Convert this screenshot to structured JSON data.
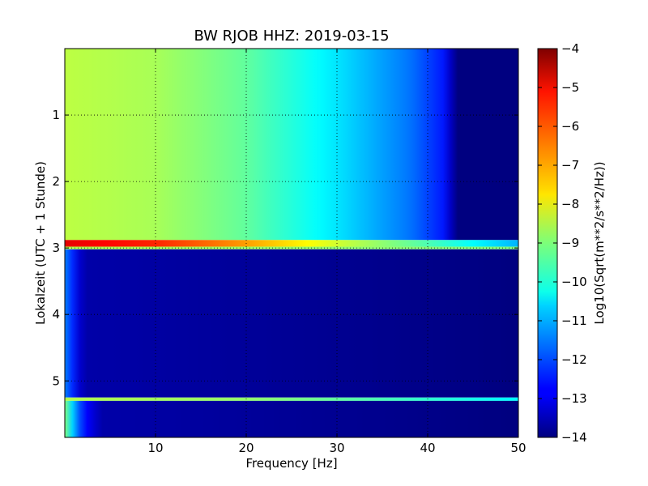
{
  "chart_data": {
    "type": "heatmap",
    "title": "BW RJOB HHZ: 2019-03-15",
    "xlabel": "Frequency [Hz]",
    "ylabel": "Lokalzeit (UTC + 1 Stunde)",
    "xlim": [
      0,
      50
    ],
    "ylim": [
      5.85,
      0
    ],
    "x_ticks": [
      10,
      20,
      30,
      40,
      50
    ],
    "x_tick_labels": [
      "10",
      "20",
      "30",
      "40",
      "50"
    ],
    "y_ticks": [
      1,
      2,
      3,
      4,
      5
    ],
    "y_tick_labels": [
      "1",
      "2",
      "3",
      "4",
      "5"
    ],
    "grid": true,
    "colormap": "jet",
    "colorbar": {
      "label": "Log10(Sqrt(m**2/s**2/Hz))",
      "range": [
        -14,
        -4
      ],
      "ticks": [
        -4,
        -5,
        -6,
        -7,
        -8,
        -9,
        -10,
        -11,
        -12,
        -13,
        -14
      ],
      "tick_labels": [
        "−4",
        "−5",
        "−6",
        "−7",
        "−8",
        "−9",
        "−10",
        "−11",
        "−12",
        "−13",
        "−14"
      ]
    },
    "regions": [
      {
        "hours": [
          0.0,
          2.88
        ],
        "level_vs_frequency": [
          [
            0,
            -8.4
          ],
          [
            10,
            -8.6
          ],
          [
            20,
            -9.3
          ],
          [
            30,
            -10.5
          ],
          [
            38,
            -11.6
          ],
          [
            42,
            -12.6
          ],
          [
            43,
            -14
          ],
          [
            50,
            -14
          ]
        ]
      },
      {
        "hours": [
          2.88,
          2.98
        ],
        "level_vs_frequency": [
          [
            0,
            -5.0
          ],
          [
            10,
            -5.6
          ],
          [
            20,
            -6.8
          ],
          [
            30,
            -8.2
          ],
          [
            40,
            -9.5
          ],
          [
            50,
            -11.0
          ]
        ]
      },
      {
        "hours": [
          2.98,
          3.02
        ],
        "level_vs_frequency": [
          [
            0,
            -8.5
          ],
          [
            50,
            -9.0
          ]
        ]
      },
      {
        "hours": [
          3.02,
          5.25
        ],
        "level_vs_frequency": [
          [
            0,
            -11.5
          ],
          [
            1,
            -12.5
          ],
          [
            2,
            -13.6
          ],
          [
            50,
            -14
          ]
        ]
      },
      {
        "hours": [
          5.25,
          5.3
        ],
        "level_vs_frequency": [
          [
            0,
            -8.5
          ],
          [
            20,
            -8.8
          ],
          [
            40,
            -9.8
          ],
          [
            50,
            -10.3
          ]
        ]
      },
      {
        "hours": [
          5.3,
          5.85
        ],
        "level_vs_frequency": [
          [
            0,
            -9.0
          ],
          [
            1,
            -11.0
          ],
          [
            2,
            -12.5
          ],
          [
            4,
            -13.6
          ],
          [
            50,
            -14
          ]
        ]
      }
    ]
  }
}
